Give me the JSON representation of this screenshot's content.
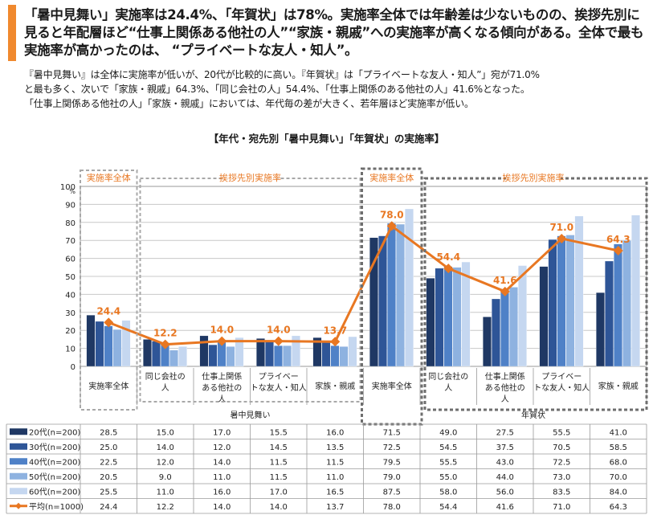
{
  "headline": {
    "text": "「暑中見舞い」実施率は24.4%、「年賀状」は78%。実施率全体では年齢差は少ないものの、挨拶先別に見ると年配層ほど“仕事上関係ある他社の人”“家族・親戚”への実施率が高くなる傾向がある。全体で最も実施率が高かったのは、 “プライベートな友人・知人”。",
    "accent_color": "#f0892e"
  },
  "summary": {
    "lines": [
      "『暑中見舞い』は全体に実施率が低いが、20代が比較的に高い。『年賀状』は「プライベートな友人・知人”」宛が71.0%",
      "と最も多く、次いで「家族・親戚」64.3%、「同じ会社の人」54.4%、「仕事上関係のある他社の人」41.6%となった。",
      "「仕事上関係ある他社の人」「家族・親戚」においては、年代毎の差が大きく、若年層ほど実施率が低い。"
    ]
  },
  "chart_title": "【年代・宛先別「暑中見舞い」「年賀状」の実施率】",
  "chart_data": {
    "type": "bar",
    "y_unit": "%",
    "ylim": [
      0,
      100
    ],
    "yticks": [
      0,
      10,
      20,
      30,
      40,
      50,
      60,
      70,
      80,
      90,
      100
    ],
    "grid": true,
    "groups": [
      {
        "name": "暑中見舞い",
        "sections": [
          "実施率全体",
          "挨拶先別実施率"
        ]
      },
      {
        "name": "年賀状",
        "sections": [
          "実施率全体",
          "挨拶先別実施率"
        ]
      }
    ],
    "categories": [
      "実施率全体",
      "同じ会社の人",
      "仕事上関係ある他社の人",
      "プライベートな友人・知人",
      "家族・親戚",
      "実施率全体",
      "同じ会社の人",
      "仕事上関係ある他社の人",
      "プライベートな友人・知人",
      "家族・親戚"
    ],
    "category_lines": [
      [
        "実施率全体"
      ],
      [
        "同じ会社の",
        "人"
      ],
      [
        "仕事上関係",
        "ある他社の",
        "人"
      ],
      [
        "プライベー",
        "トな友人・知人"
      ],
      [
        "家族・親戚"
      ],
      [
        "実施率全体"
      ],
      [
        "同じ会社の",
        "人"
      ],
      [
        "仕事上関係",
        "ある他社の",
        "人"
      ],
      [
        "プライベー",
        "トな友人・知人"
      ],
      [
        "家族・親戚"
      ]
    ],
    "series": [
      {
        "name": "20代(n=200)",
        "color": "#1f3864",
        "values": [
          28.5,
          15.0,
          17.0,
          15.5,
          16.0,
          71.5,
          49.0,
          27.5,
          55.5,
          41.0
        ]
      },
      {
        "name": "30代(n=200)",
        "color": "#2e5597",
        "values": [
          25.0,
          14.0,
          12.0,
          14.5,
          13.5,
          72.5,
          54.5,
          37.5,
          70.5,
          58.5
        ]
      },
      {
        "name": "40代(n=200)",
        "color": "#4f81c7",
        "values": [
          22.5,
          12.0,
          14.0,
          11.5,
          11.5,
          79.5,
          55.5,
          43.0,
          72.5,
          68.0
        ]
      },
      {
        "name": "50代(n=200)",
        "color": "#8eb2e0",
        "values": [
          20.5,
          9.0,
          11.0,
          11.5,
          11.0,
          79.0,
          55.0,
          44.0,
          73.0,
          70.0
        ]
      },
      {
        "name": "60代(n=200)",
        "color": "#c5d7f0",
        "values": [
          25.5,
          11.0,
          16.0,
          17.0,
          16.5,
          87.5,
          58.0,
          56.0,
          83.5,
          84.0
        ]
      }
    ],
    "average": {
      "name": "平均(n=1000)",
      "color": "#e87722",
      "values": [
        24.4,
        12.2,
        14.0,
        14.0,
        13.7,
        78.0,
        54.4,
        41.6,
        71.0,
        64.3
      ],
      "labels": [
        "24.4",
        "12.2",
        "14.0",
        "14.0",
        "13.7",
        "78.0",
        "54.4",
        "41.6",
        "71.0",
        "64.3"
      ]
    },
    "table": {
      "rows": [
        [
          "28.5",
          "15.0",
          "17.0",
          "15.5",
          "16.0",
          "71.5",
          "49.0",
          "27.5",
          "55.5",
          "41.0"
        ],
        [
          "25.0",
          "14.0",
          "12.0",
          "14.5",
          "13.5",
          "72.5",
          "54.5",
          "37.5",
          "70.5",
          "58.5"
        ],
        [
          "22.5",
          "12.0",
          "14.0",
          "11.5",
          "11.5",
          "79.5",
          "55.5",
          "43.0",
          "72.5",
          "68.0"
        ],
        [
          "20.5",
          "9.0",
          "11.0",
          "11.5",
          "11.0",
          "79.0",
          "55.0",
          "44.0",
          "73.0",
          "70.0"
        ],
        [
          "25.5",
          "11.0",
          "16.0",
          "17.0",
          "16.5",
          "87.5",
          "58.0",
          "56.0",
          "83.5",
          "84.0"
        ],
        [
          "24.4",
          "12.2",
          "14.0",
          "14.0",
          "13.7",
          "78.0",
          "54.4",
          "41.6",
          "71.0",
          "64.3"
        ]
      ]
    }
  }
}
